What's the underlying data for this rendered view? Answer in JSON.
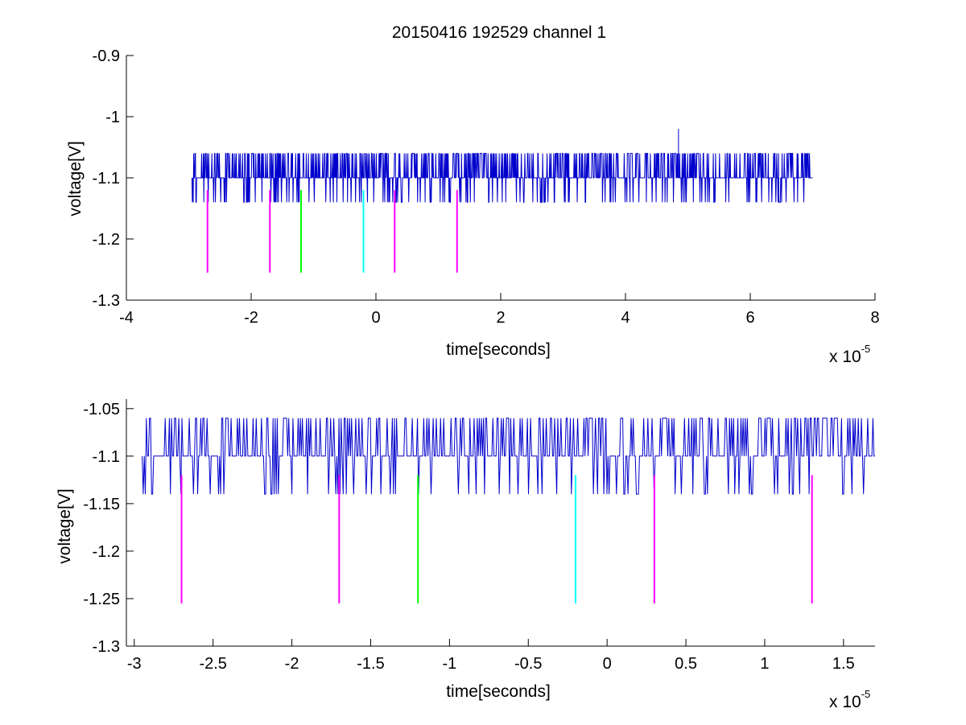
{
  "figure": {
    "title": "20150416 192529 channel 1",
    "background": "#ffffff"
  },
  "colors": {
    "signal": "#0000cc",
    "magenta": "#ff00ff",
    "green": "#00ff00",
    "cyan": "#00ffff",
    "axes": "#000000"
  },
  "chart_data": [
    {
      "type": "line",
      "title": "20150416 192529 channel 1",
      "xlabel": "time[seconds]",
      "ylabel": "voltage[V]",
      "x_exponent_label": {
        "base": "x 10",
        "exp": "-5"
      },
      "xlim": [
        -4,
        8
      ],
      "ylim": [
        -1.3,
        -0.9
      ],
      "xticks": [
        -4,
        -2,
        0,
        2,
        4,
        6,
        8
      ],
      "xtick_labels": [
        "-4",
        "-2",
        "0",
        "2",
        "4",
        "6",
        "8"
      ],
      "yticks": [
        -1.3,
        -1.2,
        -1.1,
        -1.0,
        -0.9
      ],
      "ytick_labels": [
        "-1.3",
        "-1.2",
        "-1.1",
        "-1",
        "-0.9"
      ],
      "grid": false,
      "signal": {
        "x_start": -2.95,
        "x_end": 7.0,
        "baseline": -1.1,
        "levels": [
          -1.06,
          -1.1,
          -1.14
        ],
        "spike": {
          "x": 4.85,
          "y": -1.02
        }
      },
      "markers": [
        {
          "x": -2.7,
          "y_top": -1.12,
          "y_bottom": -1.255,
          "color": "magenta"
        },
        {
          "x": -1.7,
          "y_top": -1.12,
          "y_bottom": -1.255,
          "color": "magenta"
        },
        {
          "x": -1.2,
          "y_top": -1.12,
          "y_bottom": -1.255,
          "color": "green"
        },
        {
          "x": -0.2,
          "y_top": -1.12,
          "y_bottom": -1.255,
          "color": "cyan"
        },
        {
          "x": 0.3,
          "y_top": -1.12,
          "y_bottom": -1.255,
          "color": "magenta"
        },
        {
          "x": 1.3,
          "y_top": -1.12,
          "y_bottom": -1.255,
          "color": "magenta"
        }
      ]
    },
    {
      "type": "line",
      "xlabel": "time[seconds]",
      "ylabel": "voltage[V]",
      "x_exponent_label": {
        "base": "x 10",
        "exp": "-5"
      },
      "xlim": [
        -3.05,
        1.7
      ],
      "ylim": [
        -1.3,
        -1.04
      ],
      "xticks": [
        -3,
        -2.5,
        -2,
        -1.5,
        -1,
        -0.5,
        0,
        0.5,
        1,
        1.5
      ],
      "xtick_labels": [
        "-3",
        "-2.5",
        "-2",
        "-1.5",
        "-1",
        "-0.5",
        "0",
        "0.5",
        "1",
        "1.5"
      ],
      "yticks": [
        -1.3,
        -1.25,
        -1.2,
        -1.15,
        -1.1,
        -1.05
      ],
      "ytick_labels": [
        "-1.3",
        "-1.25",
        "-1.2",
        "-1.15",
        "-1.1",
        "-1.05"
      ],
      "grid": false,
      "signal": {
        "x_start": -2.95,
        "x_end": 1.7,
        "baseline": -1.1,
        "levels": [
          -1.06,
          -1.1,
          -1.14
        ]
      },
      "markers": [
        {
          "x": -2.7,
          "y_top": -1.12,
          "y_bottom": -1.255,
          "color": "magenta"
        },
        {
          "x": -1.7,
          "y_top": -1.12,
          "y_bottom": -1.255,
          "color": "magenta"
        },
        {
          "x": -1.2,
          "y_top": -1.12,
          "y_bottom": -1.255,
          "color": "green"
        },
        {
          "x": -0.2,
          "y_top": -1.12,
          "y_bottom": -1.255,
          "color": "cyan"
        },
        {
          "x": 0.3,
          "y_top": -1.12,
          "y_bottom": -1.255,
          "color": "magenta"
        },
        {
          "x": 1.3,
          "y_top": -1.12,
          "y_bottom": -1.255,
          "color": "magenta"
        }
      ]
    }
  ]
}
